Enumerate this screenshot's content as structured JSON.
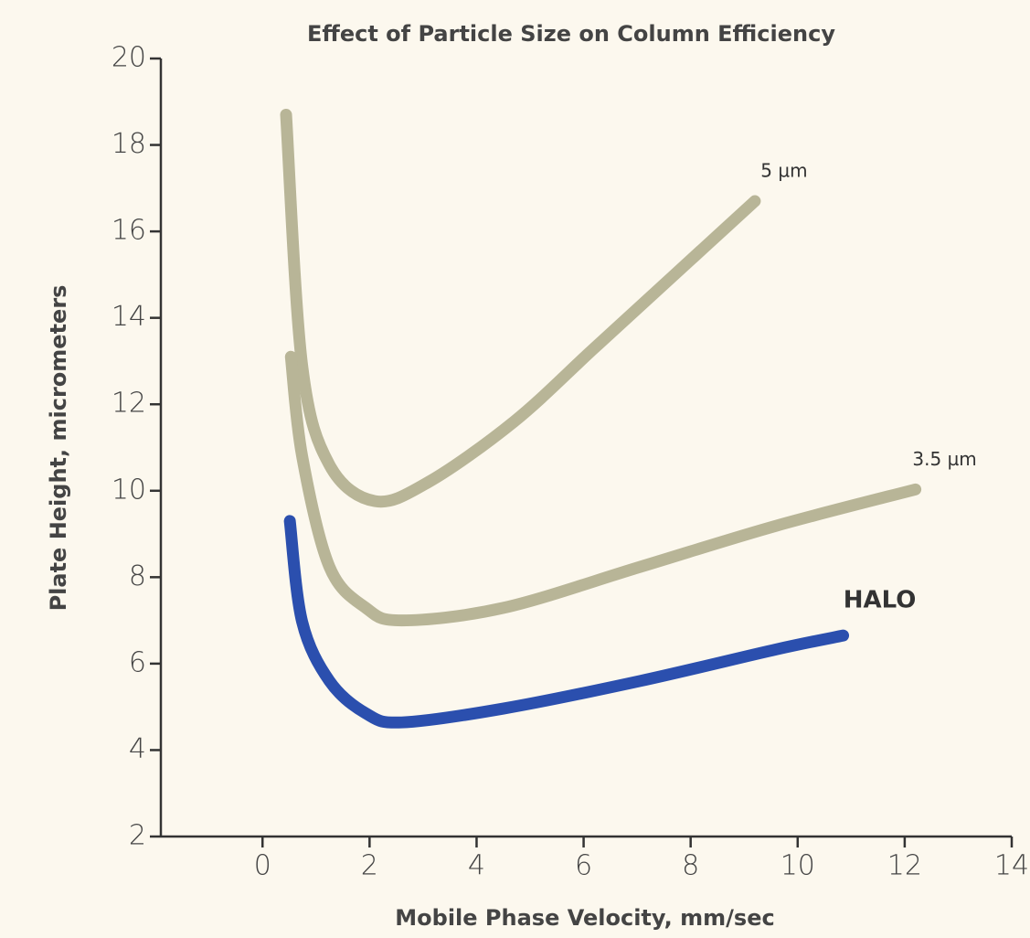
{
  "chart_data": {
    "type": "line",
    "title": "Effect of Particle Size on Column Efficiency",
    "x_label": "Mobile Phase Velocity, mm/sec",
    "y_label": "Plate Height, micrometers",
    "xlim": [
      -1.9,
      14
    ],
    "ylim": [
      2,
      20
    ],
    "xticks": [
      0,
      2,
      4,
      6,
      8,
      10,
      12,
      14
    ],
    "yticks": [
      2,
      4,
      6,
      8,
      10,
      12,
      14,
      16,
      18,
      20
    ],
    "series": [
      {
        "name": "5 µm",
        "color": "#b8b597",
        "x": [
          0.44,
          0.74,
          1.25,
          2.1,
          3.1,
          4.7,
          6.2,
          7.7,
          9.2
        ],
        "values": [
          18.7,
          12.9,
          10.6,
          9.76,
          10.2,
          11.6,
          13.3,
          15.0,
          16.7
        ]
      },
      {
        "name": "3.5 µm",
        "color": "#b8b597",
        "x": [
          0.53,
          0.74,
          1.25,
          1.93,
          2.6,
          4.5,
          7.06,
          9.6,
          12.2
        ],
        "values": [
          13.1,
          10.8,
          8.24,
          7.29,
          7.0,
          7.29,
          8.24,
          9.19,
          10.03
        ]
      },
      {
        "name": "HALO",
        "color": "#2b4fae",
        "x": [
          0.51,
          0.74,
          1.25,
          1.93,
          2.6,
          4.5,
          7.06,
          9.6,
          10.85
        ],
        "values": [
          9.3,
          6.97,
          5.6,
          4.85,
          4.64,
          4.96,
          5.6,
          6.33,
          6.65
        ]
      }
    ]
  }
}
